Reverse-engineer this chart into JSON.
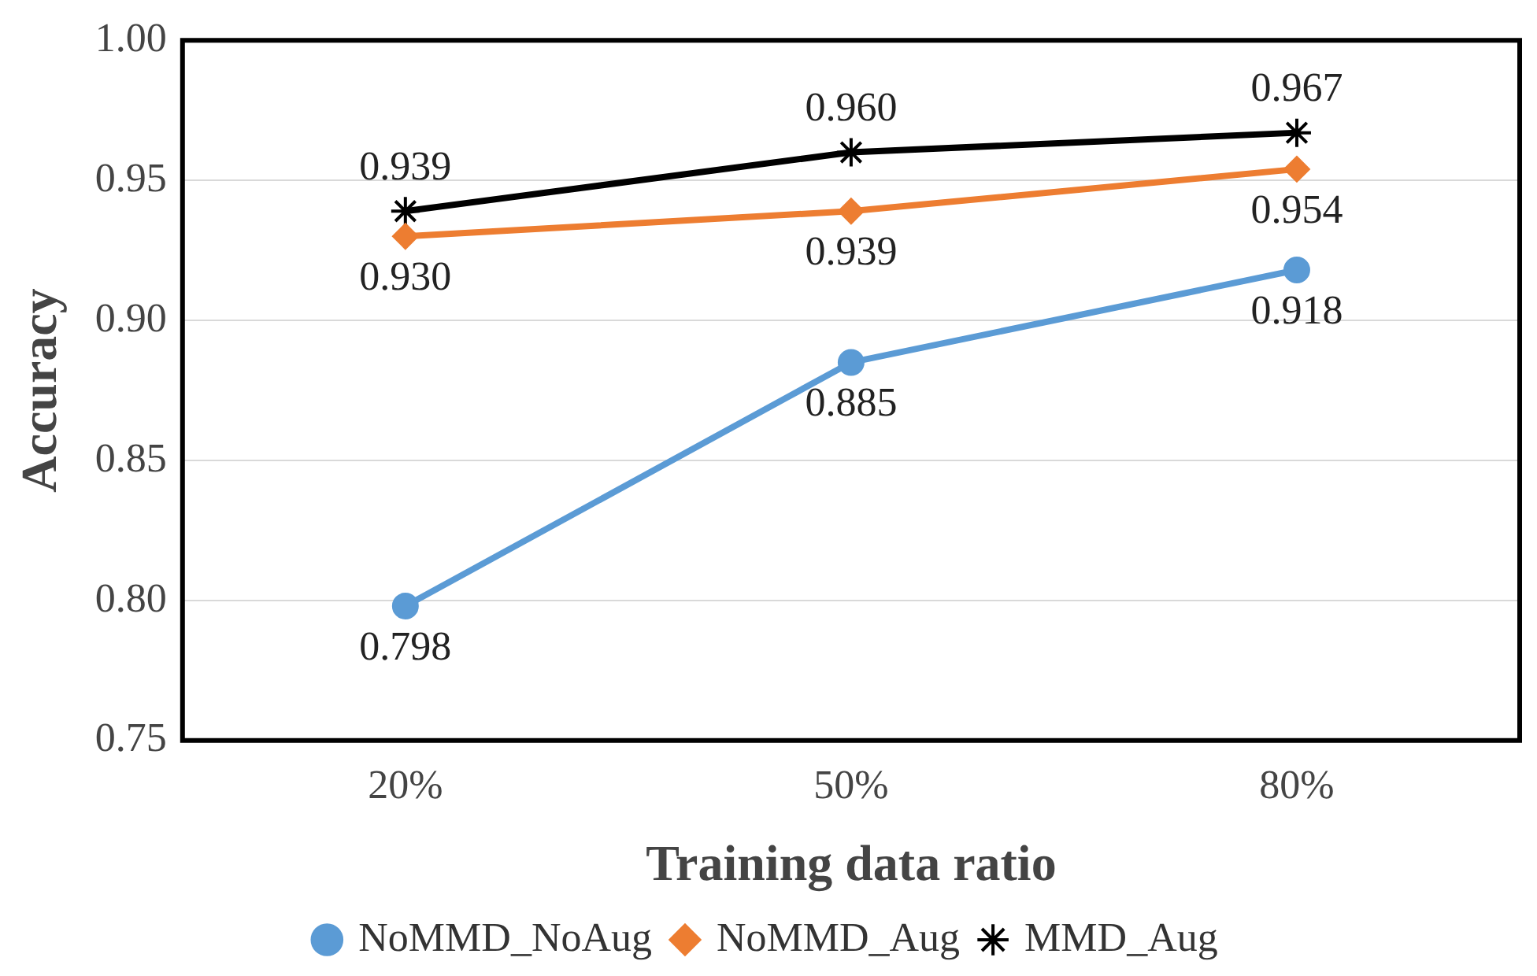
{
  "chart_data": {
    "type": "line",
    "xlabel": "Training data ratio",
    "ylabel": "Accuracy",
    "categories": [
      "20%",
      "50%",
      "80%"
    ],
    "series": [
      {
        "name": "NoMMD_NoAug",
        "color": "#5b9bd5",
        "marker": "circle",
        "values": [
          0.798,
          0.885,
          0.918
        ],
        "value_labels": [
          "0.798",
          "0.885",
          "0.918"
        ]
      },
      {
        "name": "NoMMD_Aug",
        "color": "#ed7d31",
        "marker": "diamond",
        "values": [
          0.93,
          0.939,
          0.954
        ],
        "value_labels": [
          "0.930",
          "0.939",
          "0.954"
        ]
      },
      {
        "name": "MMD_Aug",
        "color": "#000000",
        "marker": "cross",
        "values": [
          0.939,
          0.96,
          0.967
        ],
        "value_labels": [
          "0.939",
          "0.960",
          "0.967"
        ]
      }
    ],
    "ylim": [
      0.75,
      1.0
    ],
    "yticks": [
      {
        "value": 0.75,
        "label": "0.75"
      },
      {
        "value": 0.8,
        "label": "0.80"
      },
      {
        "value": 0.85,
        "label": "0.85"
      },
      {
        "value": 0.9,
        "label": "0.90"
      },
      {
        "value": 0.95,
        "label": "0.95"
      },
      {
        "value": 1.0,
        "label": "1.00"
      }
    ],
    "grid": "y",
    "legend": "bottom",
    "line_style": "solid"
  }
}
